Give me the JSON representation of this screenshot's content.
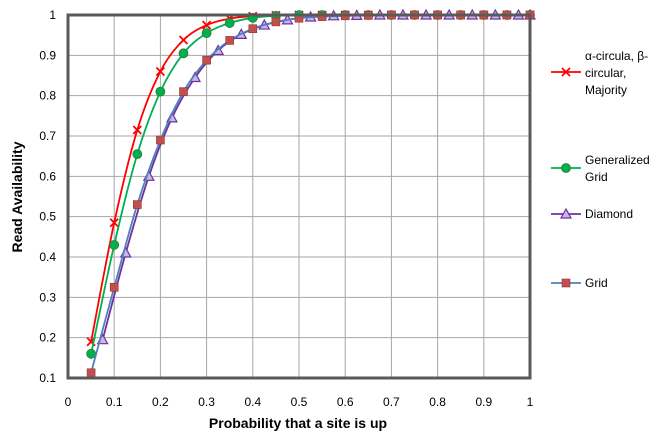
{
  "chart_data": {
    "type": "line",
    "title": "",
    "xlabel": "Probability that a site is up",
    "ylabel": "Read Availability",
    "xlim": [
      0,
      1
    ],
    "ylim": [
      0.1,
      1
    ],
    "x_ticks": [
      "0",
      "0.1",
      "0.2",
      "0.3",
      "0.4",
      "0.5",
      "0.6",
      "0.7",
      "0.8",
      "0.9",
      "1"
    ],
    "y_ticks": [
      "0.1",
      "0.2",
      "0.3",
      "0.4",
      "0.5",
      "0.6",
      "0.7",
      "0.8",
      "0.9",
      "1"
    ],
    "grid": true,
    "legend_position": "right",
    "series": [
      {
        "name": "α-circula, β-circular, Majority",
        "legend_lines": [
          "α-circula, β-",
          "circular,",
          "Majority"
        ],
        "color": "#ff0000",
        "marker": "x",
        "x": [
          0.05,
          0.1,
          0.15,
          0.2,
          0.25,
          0.3,
          0.35,
          0.4,
          0.45,
          0.5,
          0.55,
          0.6,
          0.65,
          0.7,
          0.75,
          0.8,
          0.85,
          0.9,
          0.95,
          1.0
        ],
        "y": [
          0.19,
          0.485,
          0.715,
          0.86,
          0.938,
          0.975,
          0.991,
          0.997,
          0.999,
          1.0,
          1.0,
          1.0,
          1.0,
          1.0,
          1.0,
          1.0,
          1.0,
          1.0,
          1.0,
          1.0
        ]
      },
      {
        "name": "Generalized Grid",
        "legend_lines": [
          "Generalized",
          "Grid"
        ],
        "color": "#00b050",
        "marker": "circle",
        "x": [
          0.05,
          0.1,
          0.15,
          0.2,
          0.25,
          0.3,
          0.35,
          0.4,
          0.45,
          0.5,
          0.55,
          0.6,
          0.65,
          0.7,
          0.75,
          0.8,
          0.85,
          0.9,
          0.95,
          1.0
        ],
        "y": [
          0.16,
          0.43,
          0.655,
          0.81,
          0.905,
          0.955,
          0.98,
          0.993,
          0.998,
          1.0,
          1.0,
          1.0,
          1.0,
          1.0,
          1.0,
          1.0,
          1.0,
          1.0,
          1.0,
          1.0
        ]
      },
      {
        "name": "Diamond",
        "legend_lines": [
          "Diamond"
        ],
        "color": "#7030a0",
        "marker": "triangle",
        "x": [
          0.075,
          0.125,
          0.175,
          0.225,
          0.275,
          0.325,
          0.375,
          0.425,
          0.475,
          0.525,
          0.575,
          0.625,
          0.675,
          0.725,
          0.775,
          0.825,
          0.875,
          0.925,
          0.975,
          1.0
        ],
        "y": [
          0.195,
          0.41,
          0.6,
          0.745,
          0.845,
          0.912,
          0.952,
          0.975,
          0.988,
          0.995,
          0.998,
          0.999,
          1.0,
          1.0,
          1.0,
          1.0,
          1.0,
          1.0,
          1.0,
          1.0
        ]
      },
      {
        "name": "Grid",
        "legend_lines": [
          "Grid"
        ],
        "color": "#4f81bd",
        "marker_color": "#c0504d",
        "marker": "square",
        "x": [
          0.05,
          0.1,
          0.15,
          0.2,
          0.25,
          0.3,
          0.35,
          0.4,
          0.45,
          0.5,
          0.55,
          0.6,
          0.65,
          0.7,
          0.75,
          0.8,
          0.85,
          0.9,
          0.95,
          1.0
        ],
        "y": [
          0.113,
          0.325,
          0.53,
          0.69,
          0.81,
          0.888,
          0.937,
          0.966,
          0.983,
          0.992,
          0.996,
          0.998,
          0.999,
          1.0,
          1.0,
          1.0,
          1.0,
          1.0,
          1.0,
          1.0
        ]
      }
    ]
  }
}
